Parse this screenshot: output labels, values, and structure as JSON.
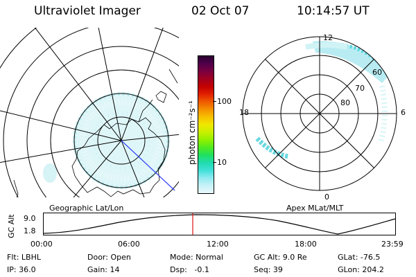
{
  "header": {
    "instrument": "Ultraviolet Imager",
    "date": "02 Oct 07",
    "time": "10:14:57 UT"
  },
  "colorbar": {
    "unit_label": "photon cm⁻²s⁻¹",
    "ticks": [
      "100",
      "10"
    ],
    "colors": [
      "#2a0030",
      "#50004a",
      "#7a0040",
      "#a00020",
      "#c40000",
      "#e02000",
      "#ef5a00",
      "#f59000",
      "#f8c000",
      "#f0e800",
      "#c8f000",
      "#90f000",
      "#50ea20",
      "#20e060",
      "#20dcb0",
      "#40e0d8",
      "#90eaf0",
      "#c8f2f8",
      "#e8f8fc"
    ]
  },
  "left_map": {
    "label": "Geographic Lat/Lon"
  },
  "right_map": {
    "label": "Apex MLat/MLT",
    "mlt_labels": {
      "top": "12",
      "bottom": "0",
      "left": "18",
      "right": "6"
    },
    "lat_labels": [
      "60",
      "70",
      "80"
    ]
  },
  "altitude_plot": {
    "ylabel": "GC Alt",
    "yticks": [
      "9.0",
      "1.8"
    ],
    "xticks": [
      "00:00",
      "06:00",
      "12:00",
      "18:00",
      "23:59"
    ]
  },
  "status": {
    "filter": "Flt: LBHL",
    "ip": "IP: 36.0",
    "door": "Door: Open",
    "gain": "Gain: 14",
    "mode": "Mode: Normal",
    "dsp": "Dsp:   -0.1",
    "gc_alt": "GC Alt: 9.0 Re",
    "seq": "Seq: 39",
    "glat": "GLat: -76.5",
    "glon": "GLon: 204.2"
  }
}
